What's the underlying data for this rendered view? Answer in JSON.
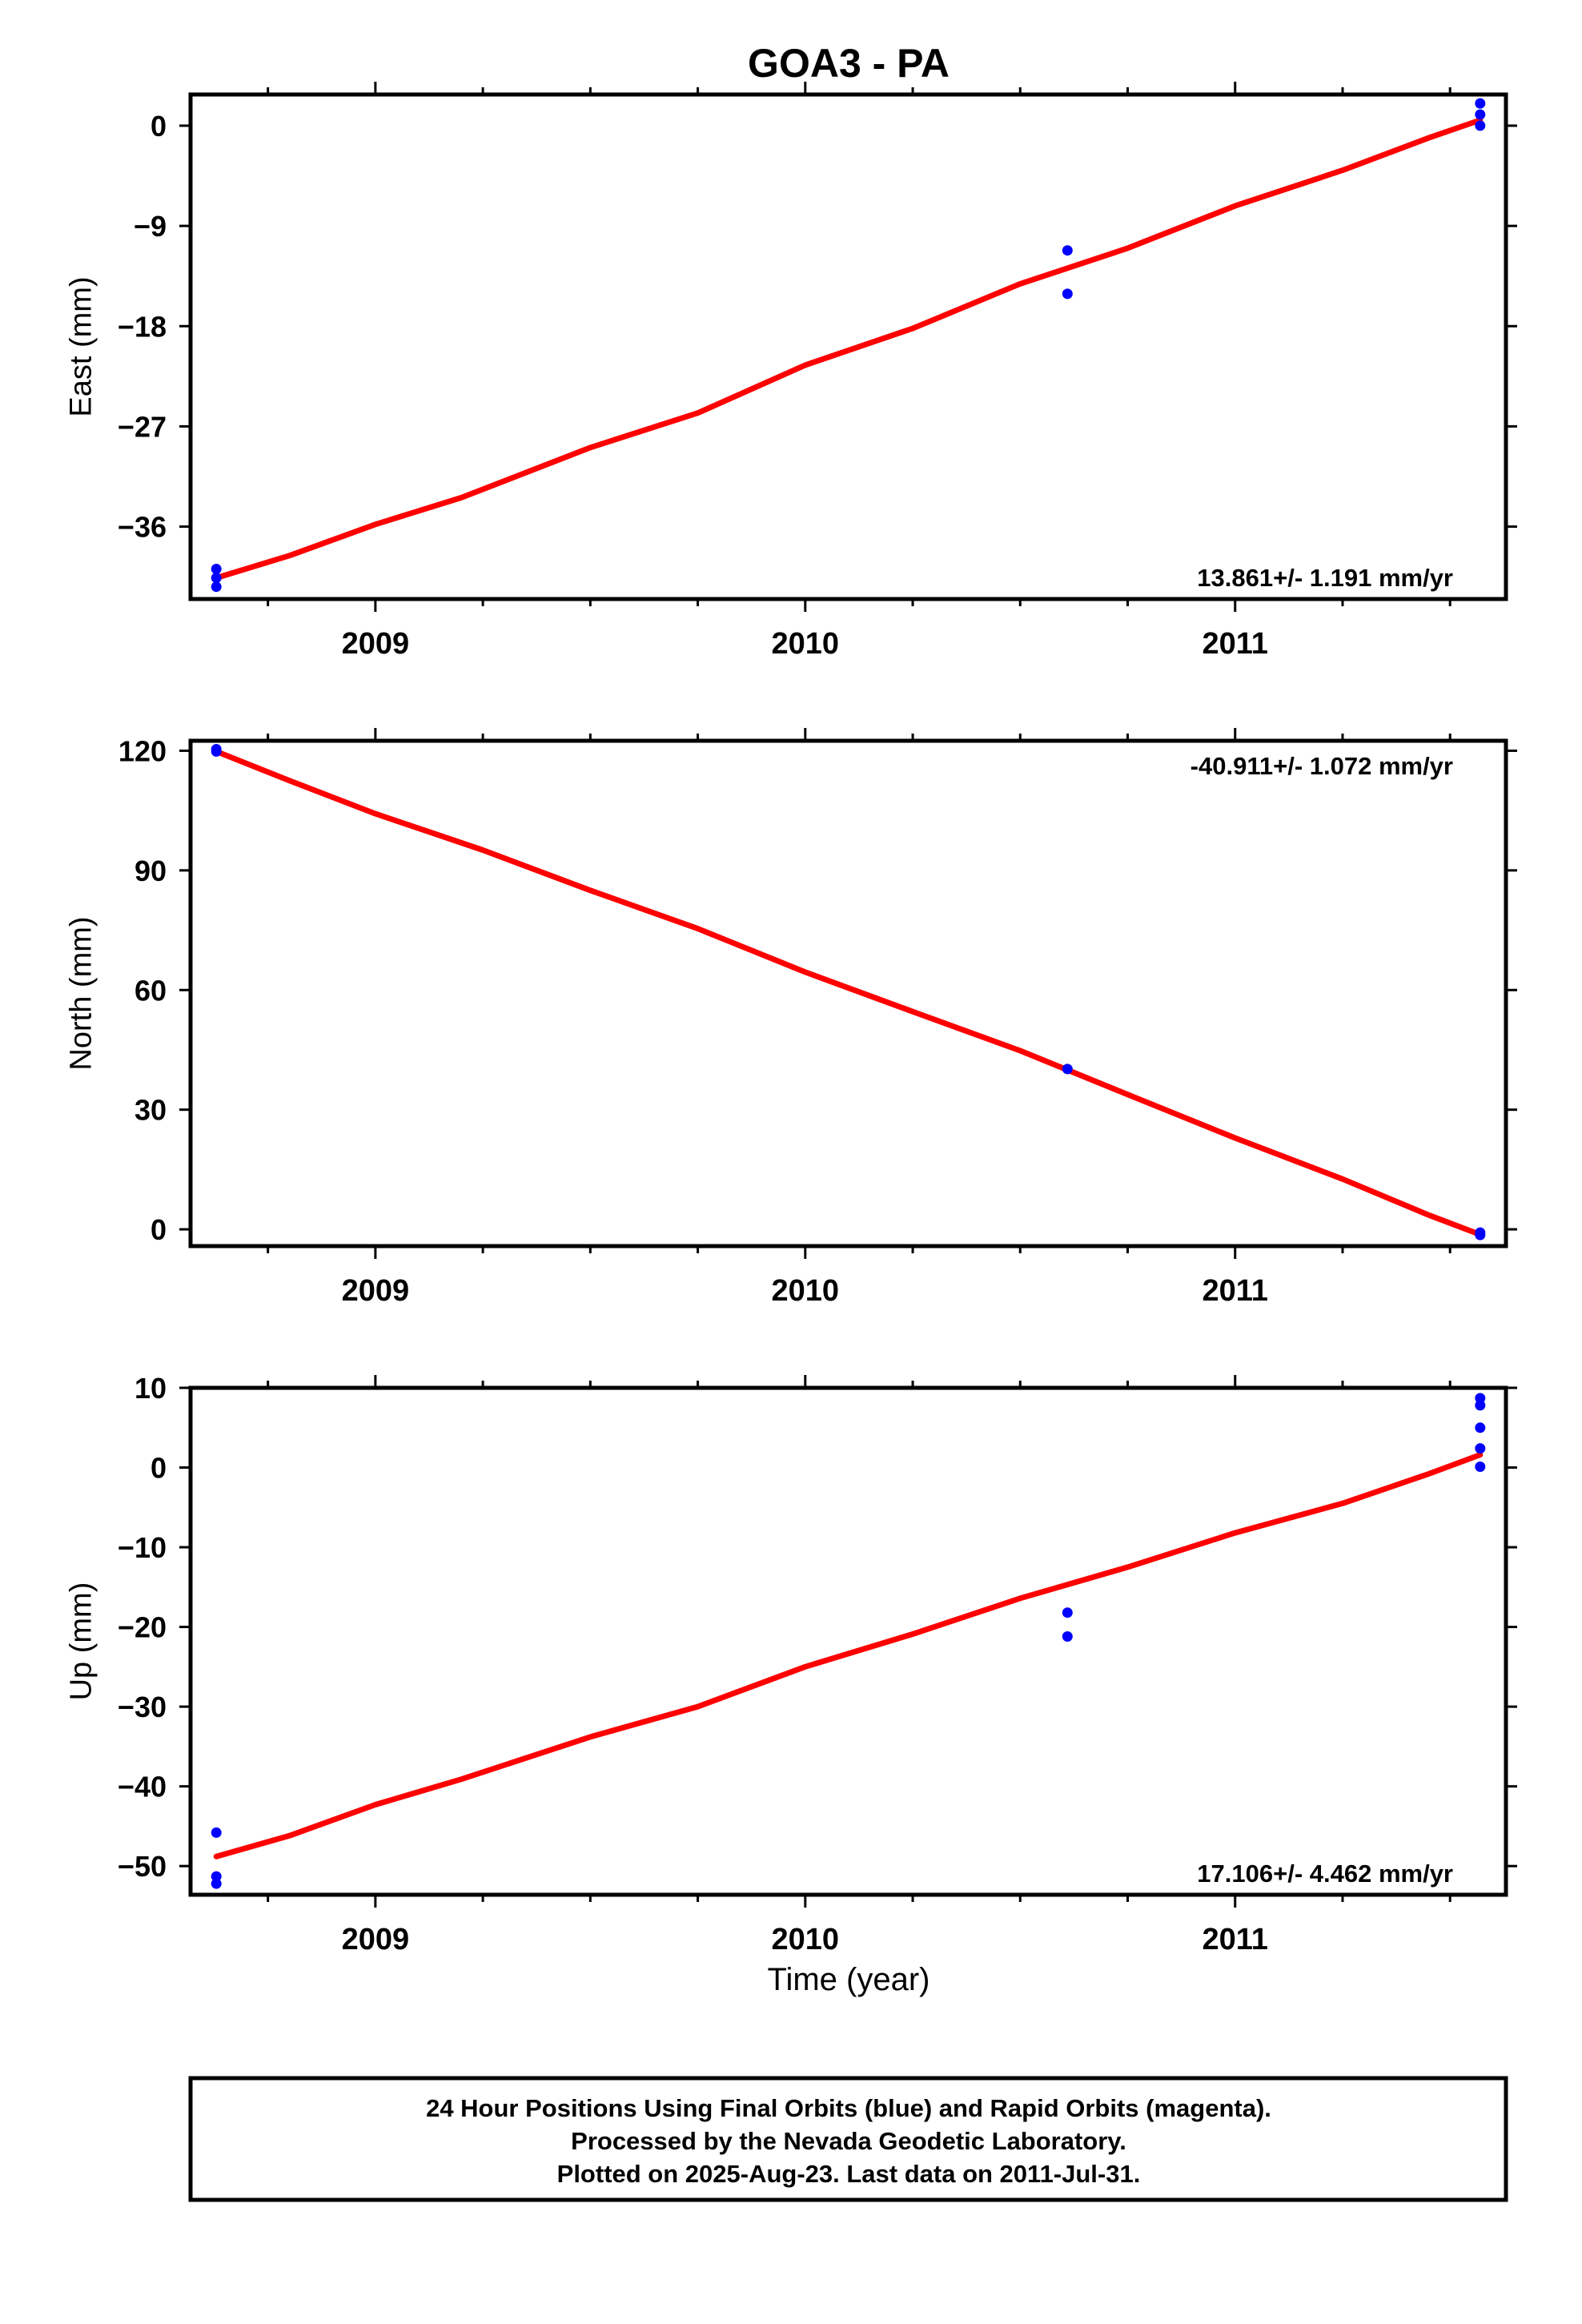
{
  "colors": {
    "model": "#ff0000",
    "final_orbit_points": "#0000ff",
    "frame": "#000000"
  },
  "footer": {
    "line1": "24 Hour Positions Using Final Orbits (blue) and Rapid Orbits (magenta).",
    "line2": "Processed by the Nevada Geodetic Laboratory.",
    "line3": "Plotted on 2025-Aug-23. Last data on 2011-Jul-31."
  },
  "chart_data": [
    {
      "type": "scatter",
      "title": "GOA3 - PA",
      "xlabel": "",
      "ylabel": "East (mm)",
      "xlim": [
        2008.57,
        2011.63
      ],
      "ylim": [
        -42.5,
        2.8
      ],
      "x_ticks": [
        "2009",
        "2010",
        "2011"
      ],
      "y_ticks": [
        0,
        -9,
        -18,
        -27,
        -36
      ],
      "rate_label": "13.861+/- 1.191 mm/yr",
      "rate_position": "bottom-right",
      "series": [
        {
          "points": [
            [
              2008.63,
              -39.8
            ],
            [
              2008.63,
              -40.6
            ],
            [
              2008.63,
              -41.4
            ],
            [
              2010.61,
              -11.2
            ],
            [
              2010.61,
              -15.1
            ],
            [
              2011.57,
              2.0
            ],
            [
              2011.57,
              1.0
            ],
            [
              2011.57,
              0.0
            ]
          ]
        },
        {
          "curve": [
            [
              2008.63,
              -40.6
            ],
            [
              2008.8,
              -38.6
            ],
            [
              2009.0,
              -35.8
            ],
            [
              2009.2,
              -33.4
            ],
            [
              2009.5,
              -28.9
            ],
            [
              2009.75,
              -25.8
            ],
            [
              2010.0,
              -21.5
            ],
            [
              2010.25,
              -18.2
            ],
            [
              2010.5,
              -14.2
            ],
            [
              2010.75,
              -11.0
            ],
            [
              2011.0,
              -7.2
            ],
            [
              2011.25,
              -4.0
            ],
            [
              2011.45,
              -1.1
            ],
            [
              2011.57,
              0.5
            ]
          ]
        }
      ]
    },
    {
      "type": "scatter",
      "title": "",
      "xlabel": "",
      "ylabel": "North (mm)",
      "xlim": [
        2008.57,
        2011.63
      ],
      "ylim": [
        -4.2,
        122.5
      ],
      "x_ticks": [
        "2009",
        "2010",
        "2011"
      ],
      "y_ticks": [
        120,
        90,
        60,
        30,
        0
      ],
      "rate_label": "-40.911+/- 1.072 mm/yr",
      "rate_position": "top-right",
      "series": [
        {
          "points": [
            [
              2008.63,
              120.4
            ],
            [
              2008.63,
              119.8
            ],
            [
              2010.61,
              40.2
            ],
            [
              2011.57,
              -0.8
            ],
            [
              2011.57,
              -1.4
            ]
          ]
        },
        {
          "curve": [
            [
              2008.63,
              119.8
            ],
            [
              2008.8,
              112.5
            ],
            [
              2009.0,
              104.2
            ],
            [
              2009.25,
              95.1
            ],
            [
              2009.5,
              85.0
            ],
            [
              2009.75,
              75.4
            ],
            [
              2010.0,
              64.5
            ],
            [
              2010.25,
              54.6
            ],
            [
              2010.5,
              44.8
            ],
            [
              2010.75,
              33.8
            ],
            [
              2011.0,
              22.9
            ],
            [
              2011.25,
              12.6
            ],
            [
              2011.45,
              3.6
            ],
            [
              2011.57,
              -1.3
            ]
          ]
        }
      ]
    },
    {
      "type": "scatter",
      "title": "",
      "xlabel": "Time (year)",
      "ylabel": "Up (mm)",
      "xlim": [
        2008.57,
        2011.63
      ],
      "ylim": [
        -53.6,
        10.0
      ],
      "x_ticks": [
        "2009",
        "2010",
        "2011"
      ],
      "y_ticks": [
        10,
        0,
        -10,
        -20,
        -30,
        -40,
        -50
      ],
      "rate_label": "17.106+/- 4.462 mm/yr",
      "rate_position": "bottom-right",
      "series": [
        {
          "points": [
            [
              2008.63,
              -45.8
            ],
            [
              2008.63,
              -51.3
            ],
            [
              2008.63,
              -52.2
            ],
            [
              2010.61,
              -18.2
            ],
            [
              2010.61,
              -21.2
            ],
            [
              2011.57,
              8.7
            ],
            [
              2011.57,
              7.8
            ],
            [
              2011.57,
              5.0
            ],
            [
              2011.57,
              2.4
            ],
            [
              2011.57,
              0.1
            ]
          ]
        },
        {
          "curve": [
            [
              2008.63,
              -48.8
            ],
            [
              2008.8,
              -46.2
            ],
            [
              2009.0,
              -42.3
            ],
            [
              2009.2,
              -39.1
            ],
            [
              2009.5,
              -33.8
            ],
            [
              2009.75,
              -30.0
            ],
            [
              2010.0,
              -25.0
            ],
            [
              2010.25,
              -20.9
            ],
            [
              2010.5,
              -16.4
            ],
            [
              2010.75,
              -12.5
            ],
            [
              2011.0,
              -8.2
            ],
            [
              2011.25,
              -4.5
            ],
            [
              2011.45,
              -0.8
            ],
            [
              2011.57,
              1.6
            ]
          ]
        }
      ]
    }
  ]
}
